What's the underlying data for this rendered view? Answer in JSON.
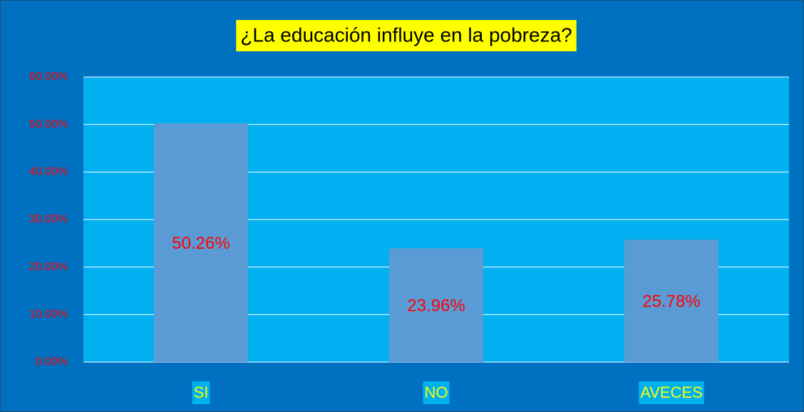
{
  "chart_data": {
    "type": "bar",
    "title": "¿La educación influye en la pobreza?",
    "categories": [
      "SI",
      "NO",
      "AVECES"
    ],
    "values": [
      50.26,
      23.96,
      25.78
    ],
    "value_labels": [
      "50.26%",
      "23.96%",
      "25.78%"
    ],
    "color": "#5b9bd5",
    "ylim": [
      0,
      60
    ],
    "yticks": [
      {
        "value": 0,
        "label": "0.00%"
      },
      {
        "value": 10,
        "label": "10.00%"
      },
      {
        "value": 20,
        "label": "20.00%"
      },
      {
        "value": 30,
        "label": "30.00%"
      },
      {
        "value": 40,
        "label": "40.00%"
      },
      {
        "value": 50,
        "label": "50.00%"
      },
      {
        "value": 60,
        "label": "60.00%"
      }
    ],
    "grid": true
  }
}
